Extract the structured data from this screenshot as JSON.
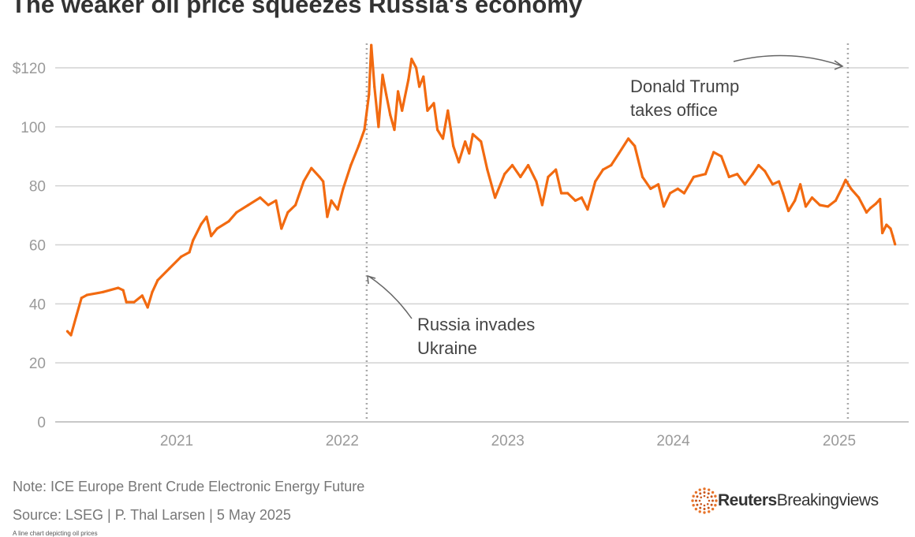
{
  "title": "The weaker oil price squeezes Russia's economy",
  "chart_data": {
    "type": "line",
    "title": "The weaker oil price squeezes Russia's economy",
    "xlabel": "",
    "ylabel": "",
    "ylim": [
      0,
      120
    ],
    "y_ticks": [
      {
        "value": 0,
        "label": "0"
      },
      {
        "value": 20,
        "label": "20"
      },
      {
        "value": 40,
        "label": "40"
      },
      {
        "value": 60,
        "label": "60"
      },
      {
        "value": 80,
        "label": "80"
      },
      {
        "value": 100,
        "label": "100"
      },
      {
        "value": 120,
        "label": "$120"
      }
    ],
    "x_ticks": [
      {
        "value": "2021-01-01",
        "label": "2021"
      },
      {
        "value": "2022-01-01",
        "label": "2022"
      },
      {
        "value": "2023-01-01",
        "label": "2023"
      },
      {
        "value": "2024-01-01",
        "label": "2024"
      },
      {
        "value": "2025-01-01",
        "label": "2025"
      }
    ],
    "xlim": [
      "2020-04-15",
      "2025-05-20"
    ],
    "grid": "horizontal",
    "line_color": "#f26a10",
    "series": [
      {
        "points": [
          [
            "2020-05-05",
            30.7
          ],
          [
            "2020-05-13",
            29.4
          ],
          [
            "2020-05-25",
            36
          ],
          [
            "2020-06-05",
            42
          ],
          [
            "2020-06-17",
            43
          ],
          [
            "2020-07-22",
            44
          ],
          [
            "2020-08-25",
            45.4
          ],
          [
            "2020-09-05",
            44.6
          ],
          [
            "2020-09-12",
            40.6
          ],
          [
            "2020-09-29",
            40.6
          ],
          [
            "2020-10-17",
            42.8
          ],
          [
            "2020-10-29",
            38.8
          ],
          [
            "2020-11-08",
            44
          ],
          [
            "2020-11-20",
            48
          ],
          [
            "2020-12-16",
            52
          ],
          [
            "2021-01-11",
            56
          ],
          [
            "2021-01-29",
            57.5
          ],
          [
            "2021-02-06",
            61.5
          ],
          [
            "2021-02-24",
            67
          ],
          [
            "2021-03-08",
            69.5
          ],
          [
            "2021-03-18",
            63
          ],
          [
            "2021-03-31",
            65.5
          ],
          [
            "2021-04-26",
            68
          ],
          [
            "2021-05-13",
            71
          ],
          [
            "2021-06-08",
            73.5
          ],
          [
            "2021-07-04",
            76
          ],
          [
            "2021-07-22",
            73.5
          ],
          [
            "2021-08-08",
            75
          ],
          [
            "2021-08-20",
            65.5
          ],
          [
            "2021-09-03",
            71
          ],
          [
            "2021-09-20",
            73.5
          ],
          [
            "2021-10-08",
            81.5
          ],
          [
            "2021-10-25",
            86
          ],
          [
            "2021-11-12",
            83
          ],
          [
            "2021-11-20",
            81.5
          ],
          [
            "2021-11-29",
            69.5
          ],
          [
            "2021-12-08",
            75
          ],
          [
            "2021-12-22",
            72
          ],
          [
            "2022-01-03",
            79
          ],
          [
            "2022-01-20",
            87
          ],
          [
            "2022-02-06",
            93.5
          ],
          [
            "2022-02-19",
            99
          ],
          [
            "2022-03-01",
            111
          ],
          [
            "2022-03-06",
            127.7
          ],
          [
            "2022-03-13",
            113.6
          ],
          [
            "2022-03-22",
            100
          ],
          [
            "2022-03-31",
            117.6
          ],
          [
            "2022-04-08",
            111
          ],
          [
            "2022-04-17",
            104
          ],
          [
            "2022-04-26",
            99
          ],
          [
            "2022-05-04",
            112
          ],
          [
            "2022-05-13",
            105.5
          ],
          [
            "2022-05-27",
            116
          ],
          [
            "2022-06-03",
            123
          ],
          [
            "2022-06-13",
            120
          ],
          [
            "2022-06-20",
            113.6
          ],
          [
            "2022-06-29",
            117
          ],
          [
            "2022-07-08",
            105.5
          ],
          [
            "2022-07-22",
            108
          ],
          [
            "2022-07-30",
            99
          ],
          [
            "2022-08-11",
            96
          ],
          [
            "2022-08-22",
            105.5
          ],
          [
            "2022-09-03",
            93.5
          ],
          [
            "2022-09-15",
            88
          ],
          [
            "2022-09-29",
            95
          ],
          [
            "2022-10-08",
            91
          ],
          [
            "2022-10-16",
            97.5
          ],
          [
            "2022-11-03",
            95
          ],
          [
            "2022-11-17",
            85.5
          ],
          [
            "2022-12-04",
            76
          ],
          [
            "2022-12-25",
            84
          ],
          [
            "2023-01-11",
            87
          ],
          [
            "2023-01-29",
            83
          ],
          [
            "2023-02-15",
            87
          ],
          [
            "2023-03-05",
            81.5
          ],
          [
            "2023-03-18",
            73.5
          ],
          [
            "2023-03-31",
            83
          ],
          [
            "2023-04-17",
            85.5
          ],
          [
            "2023-04-29",
            77.5
          ],
          [
            "2023-05-13",
            77.5
          ],
          [
            "2023-05-30",
            75
          ],
          [
            "2023-06-13",
            76
          ],
          [
            "2023-06-26",
            72
          ],
          [
            "2023-07-13",
            81.5
          ],
          [
            "2023-07-30",
            85.5
          ],
          [
            "2023-08-17",
            87
          ],
          [
            "2023-09-03",
            91
          ],
          [
            "2023-09-24",
            96
          ],
          [
            "2023-10-08",
            93.5
          ],
          [
            "2023-10-25",
            83
          ],
          [
            "2023-11-12",
            79
          ],
          [
            "2023-11-29",
            80.5
          ],
          [
            "2023-12-11",
            73
          ],
          [
            "2023-12-25",
            77.5
          ],
          [
            "2024-01-11",
            79
          ],
          [
            "2024-01-25",
            77.5
          ],
          [
            "2024-02-15",
            83
          ],
          [
            "2024-03-12",
            84
          ],
          [
            "2024-03-30",
            91.4
          ],
          [
            "2024-04-16",
            90
          ],
          [
            "2024-05-03",
            83
          ],
          [
            "2024-05-21",
            84
          ],
          [
            "2024-06-07",
            80.5
          ],
          [
            "2024-06-24",
            84
          ],
          [
            "2024-07-07",
            87
          ],
          [
            "2024-07-21",
            85
          ],
          [
            "2024-08-07",
            80.5
          ],
          [
            "2024-08-21",
            81.5
          ],
          [
            "2024-08-30",
            77.5
          ],
          [
            "2024-09-11",
            71.5
          ],
          [
            "2024-09-25",
            75
          ],
          [
            "2024-10-07",
            80.5
          ],
          [
            "2024-10-19",
            73
          ],
          [
            "2024-11-02",
            76
          ],
          [
            "2024-11-19",
            73.5
          ],
          [
            "2024-12-07",
            73
          ],
          [
            "2024-12-24",
            75
          ],
          [
            "2025-01-06",
            79
          ],
          [
            "2025-01-15",
            82
          ],
          [
            "2025-01-27",
            79
          ],
          [
            "2025-02-13",
            76
          ],
          [
            "2025-03-02",
            71
          ],
          [
            "2025-03-11",
            72.5
          ],
          [
            "2025-03-23",
            74
          ],
          [
            "2025-04-01",
            75.5
          ],
          [
            "2025-04-06",
            64
          ],
          [
            "2025-04-15",
            66.8
          ],
          [
            "2025-04-24",
            65.5
          ],
          [
            "2025-04-29",
            63
          ],
          [
            "2025-05-04",
            60.2
          ]
        ]
      }
    ],
    "annotations": [
      {
        "date": "2022-02-24",
        "text_lines": [
          "Russia invades",
          "Ukraine"
        ]
      },
      {
        "date": "2025-01-20",
        "text_lines": [
          "Donald Trump",
          "takes office"
        ]
      }
    ]
  },
  "footer": {
    "note": "Note: ICE Europe Brent Crude Electronic Energy Future",
    "source": "Source: LSEG | P. Thal Larsen | 5 May 2025",
    "alt_text": "A line chart depicting oil prices",
    "logo_bold": "Reuters",
    "logo_rest": "Breakingviews"
  }
}
